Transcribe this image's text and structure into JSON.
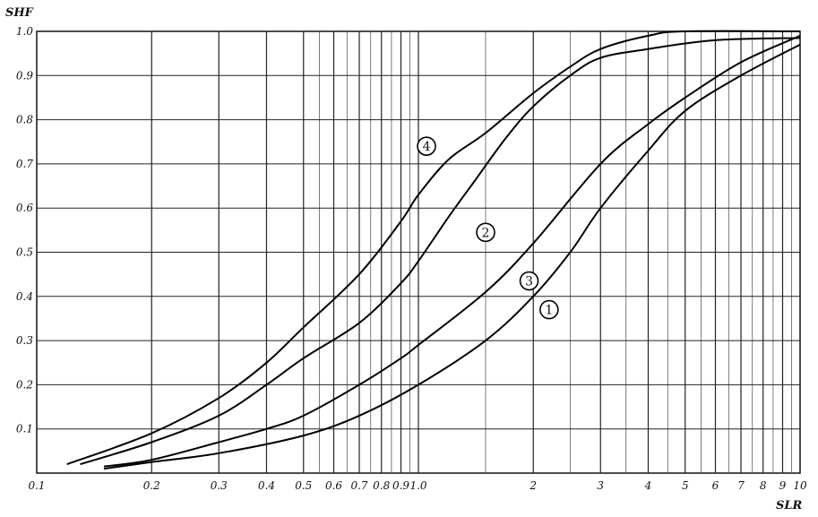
{
  "chart_data": {
    "type": "line",
    "title": "",
    "xlabel": "SLR",
    "ylabel": "SHF",
    "x_scale": "log",
    "xlim": [
      0.1,
      10
    ],
    "ylim": [
      0,
      1.0
    ],
    "grid": true,
    "x_tick_labels": [
      {
        "value": 0.1,
        "label": "0.1"
      },
      {
        "value": 0.2,
        "label": "0.2"
      },
      {
        "value": 0.3,
        "label": "0.3"
      },
      {
        "value": 0.4,
        "label": "0.4"
      },
      {
        "value": 0.5,
        "label": "0.5"
      },
      {
        "value": 0.6,
        "label": "0.6"
      },
      {
        "value": 0.7,
        "label": "0.7"
      },
      {
        "value": 0.8,
        "label": "0.8"
      },
      {
        "value": 0.9,
        "label": "0.9"
      },
      {
        "value": 1.0,
        "label": "1.0"
      },
      {
        "value": 2,
        "label": "2"
      },
      {
        "value": 3,
        "label": "3"
      },
      {
        "value": 4,
        "label": "4"
      },
      {
        "value": 5,
        "label": "5"
      },
      {
        "value": 6,
        "label": "6"
      },
      {
        "value": 7,
        "label": "7"
      },
      {
        "value": 8,
        "label": "8"
      },
      {
        "value": 9,
        "label": "9"
      },
      {
        "value": 10,
        "label": "10"
      }
    ],
    "y_tick_labels": [
      {
        "value": 0.1,
        "label": "0.1"
      },
      {
        "value": 0.2,
        "label": "0.2"
      },
      {
        "value": 0.3,
        "label": "0.3"
      },
      {
        "value": 0.4,
        "label": "0.4"
      },
      {
        "value": 0.5,
        "label": "0.5"
      },
      {
        "value": 0.6,
        "label": "0.6"
      },
      {
        "value": 0.7,
        "label": "0.7"
      },
      {
        "value": 0.8,
        "label": "0.8"
      },
      {
        "value": 0.9,
        "label": "0.9"
      },
      {
        "value": 1.0,
        "label": "1.0"
      }
    ],
    "series": [
      {
        "name": "1",
        "label_at": [
          2.2,
          0.37
        ],
        "points": [
          [
            0.15,
            0.01
          ],
          [
            0.2,
            0.025
          ],
          [
            0.3,
            0.045
          ],
          [
            0.5,
            0.085
          ],
          [
            0.7,
            0.13
          ],
          [
            1.0,
            0.2
          ],
          [
            1.5,
            0.3
          ],
          [
            2.0,
            0.4
          ],
          [
            2.5,
            0.5
          ],
          [
            3.0,
            0.6
          ],
          [
            4.0,
            0.73
          ],
          [
            5.0,
            0.82
          ],
          [
            7.0,
            0.9
          ],
          [
            10.0,
            0.97
          ]
        ]
      },
      {
        "name": "2",
        "label_at": [
          1.5,
          0.545
        ],
        "points": [
          [
            0.13,
            0.02
          ],
          [
            0.2,
            0.07
          ],
          [
            0.3,
            0.13
          ],
          [
            0.4,
            0.2
          ],
          [
            0.5,
            0.26
          ],
          [
            0.7,
            0.34
          ],
          [
            0.9,
            0.43
          ],
          [
            1.0,
            0.48
          ],
          [
            1.2,
            0.58
          ],
          [
            1.4,
            0.66
          ],
          [
            1.7,
            0.76
          ],
          [
            2.0,
            0.83
          ],
          [
            2.5,
            0.9
          ],
          [
            3.0,
            0.94
          ],
          [
            4.0,
            0.96
          ],
          [
            6.0,
            0.98
          ],
          [
            10.0,
            0.985
          ]
        ]
      },
      {
        "name": "3",
        "label_at": [
          1.95,
          0.435
        ],
        "points": [
          [
            0.15,
            0.015
          ],
          [
            0.2,
            0.03
          ],
          [
            0.3,
            0.07
          ],
          [
            0.4,
            0.1
          ],
          [
            0.5,
            0.13
          ],
          [
            0.7,
            0.2
          ],
          [
            0.9,
            0.26
          ],
          [
            1.0,
            0.29
          ],
          [
            1.5,
            0.41
          ],
          [
            2.0,
            0.52
          ],
          [
            3.0,
            0.7
          ],
          [
            4.0,
            0.79
          ],
          [
            5.0,
            0.85
          ],
          [
            7.0,
            0.93
          ],
          [
            10.0,
            0.99
          ]
        ]
      },
      {
        "name": "4",
        "label_at": [
          1.05,
          0.74
        ],
        "points": [
          [
            0.12,
            0.02
          ],
          [
            0.2,
            0.09
          ],
          [
            0.3,
            0.17
          ],
          [
            0.4,
            0.25
          ],
          [
            0.5,
            0.33
          ],
          [
            0.7,
            0.45
          ],
          [
            0.9,
            0.57
          ],
          [
            1.0,
            0.63
          ],
          [
            1.2,
            0.71
          ],
          [
            1.5,
            0.77
          ],
          [
            2.0,
            0.86
          ],
          [
            2.5,
            0.92
          ],
          [
            3.0,
            0.96
          ],
          [
            4.0,
            0.99
          ],
          [
            5.0,
            1.0
          ],
          [
            10.0,
            1.0
          ]
        ]
      }
    ]
  }
}
